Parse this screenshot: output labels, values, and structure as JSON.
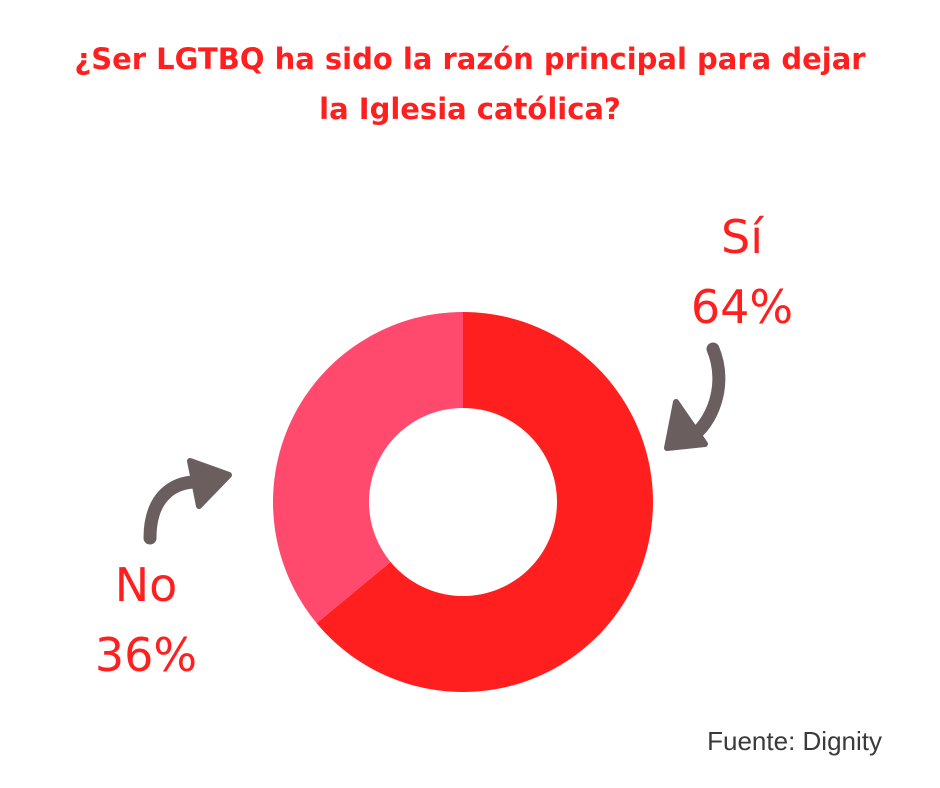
{
  "title": {
    "line1": "¿Ser LGTBQ ha sido la razón principal para dejar",
    "line2": "la Iglesia católica?"
  },
  "chart_data": {
    "type": "pie",
    "donut": true,
    "categories": [
      "Sí",
      "No"
    ],
    "values": [
      64,
      36
    ],
    "value_labels": [
      "64%",
      "36%"
    ],
    "colors": [
      "#ff1f1f",
      "#ff4a6e"
    ],
    "title": "¿Ser LGTBQ ha sido la razón principal para dejar la Iglesia católica?",
    "legend": "none"
  },
  "source": "Fuente: Dignity",
  "colors": {
    "title": "#ff1f1f",
    "arrow": "#6b5e5e",
    "source_text": "#3a3a3a"
  }
}
